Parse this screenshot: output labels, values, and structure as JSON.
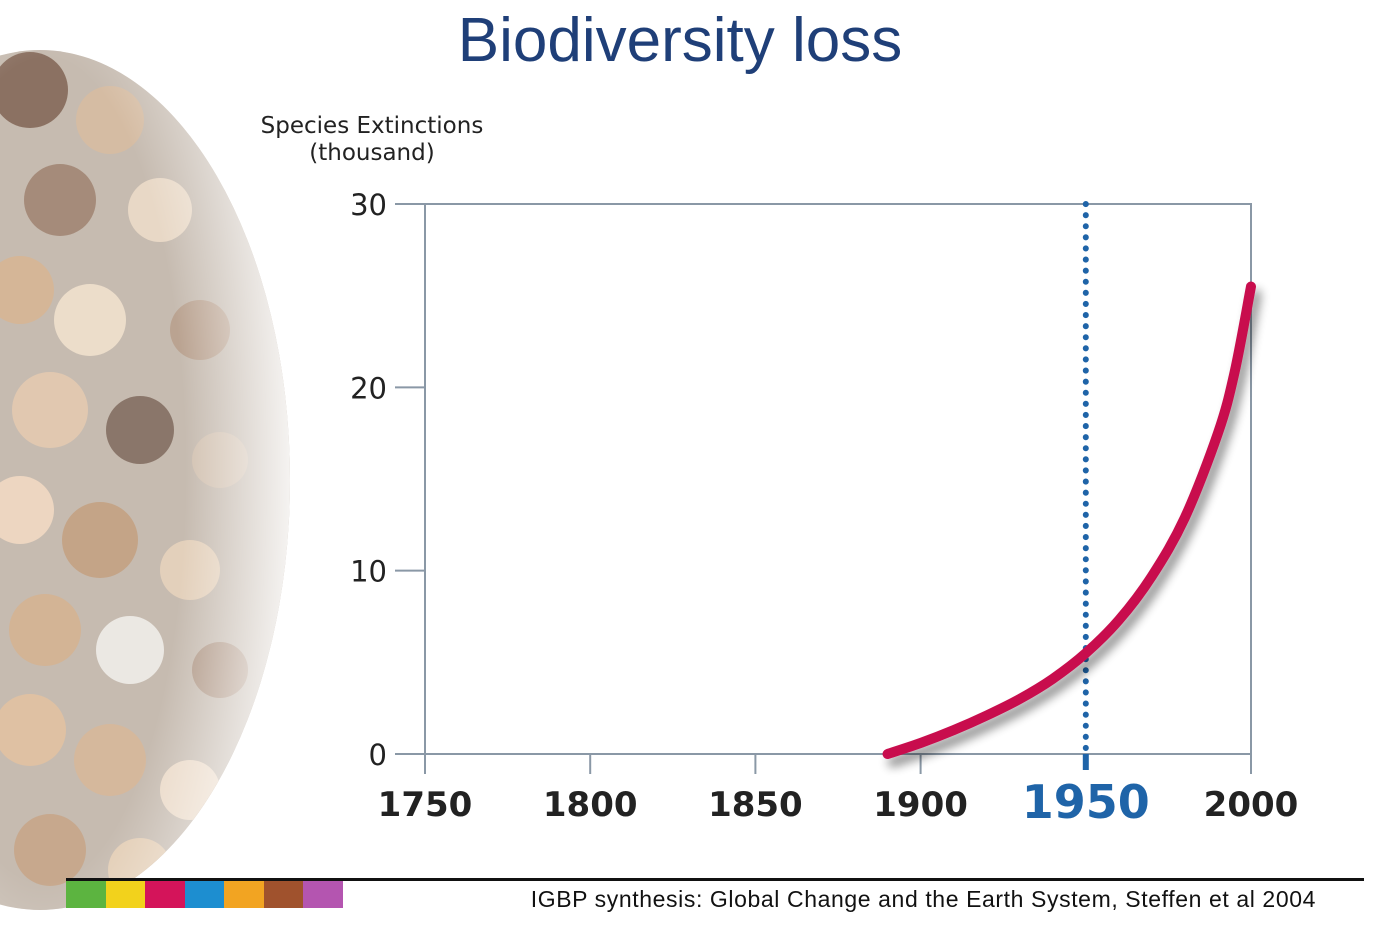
{
  "slide": {
    "title": "Biodiversity loss",
    "citation": "IGBP synthesis: Global Change and the Earth System, Steffen et al 2004"
  },
  "palette": {
    "title": "#1f3f78",
    "curve": "#c8104e",
    "marker": "#1f64a8",
    "axis": "#8a98a6",
    "strip": [
      "#5cb440",
      "#f2d21c",
      "#d4145a",
      "#1d8ed0",
      "#f2a422",
      "#a0522d",
      "#b455b0"
    ]
  },
  "icons": {
    "photo": "crowd-of-people-photo"
  },
  "chart_data": {
    "type": "line",
    "ylabel": "Species Extinctions",
    "ylabel_unit": "(thousand)",
    "ylim": [
      0,
      30
    ],
    "xlim": [
      1750,
      2000
    ],
    "y_ticks": [
      0,
      10,
      20,
      30
    ],
    "x_ticks": [
      1750,
      1800,
      1850,
      1900,
      1950,
      2000
    ],
    "highlight_year": 1950,
    "series": [
      {
        "x": [
          1890,
          1900,
          1910,
          1920,
          1930,
          1940,
          1950,
          1960,
          1970,
          1980,
          1990,
          1995,
          2000
        ],
        "values": [
          0,
          0.6,
          1.3,
          2.1,
          3.0,
          4.1,
          5.5,
          7.3,
          9.7,
          12.9,
          17.5,
          20.8,
          25.5
        ]
      }
    ],
    "grid": false
  }
}
